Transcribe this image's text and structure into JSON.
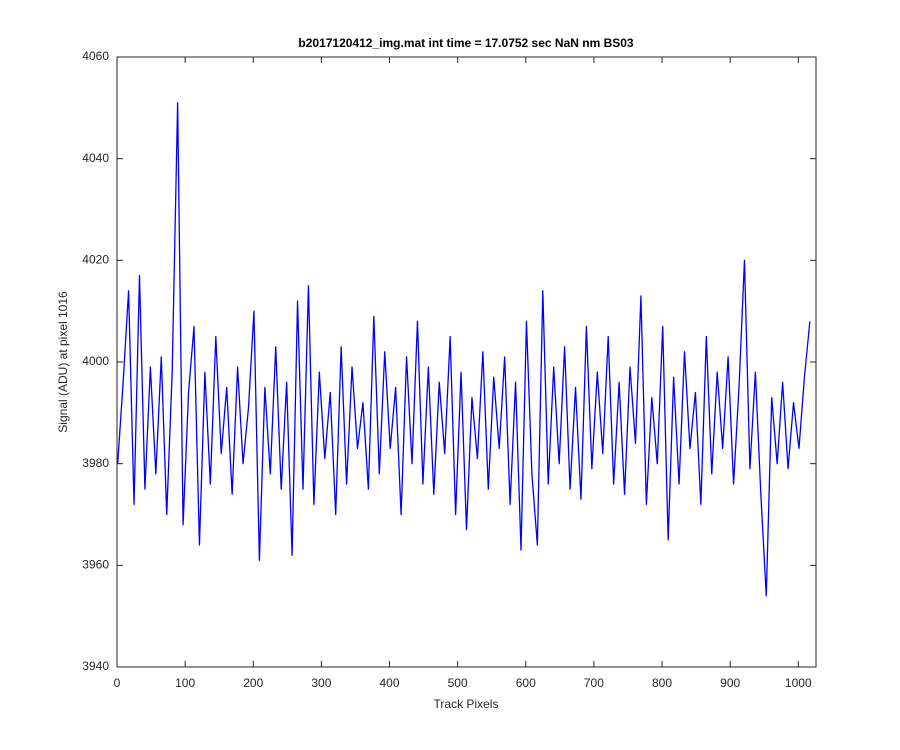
{
  "chart_data": {
    "type": "line",
    "title": "b2017120412_img.mat int time = 17.0752 sec  NaN nm BS03",
    "xlabel": "Track Pixels",
    "ylabel": "Signal (ADU) at pixel 1016",
    "xlim": [
      0,
      1026
    ],
    "ylim": [
      3940,
      4060
    ],
    "xticks": [
      0,
      100,
      200,
      300,
      400,
      500,
      600,
      700,
      800,
      900,
      1000
    ],
    "yticks": [
      3940,
      3960,
      3980,
      4000,
      4020,
      4040,
      4060
    ],
    "grid": false,
    "x": [
      1,
      9,
      17,
      25,
      33,
      41,
      49,
      57,
      65,
      73,
      81,
      89,
      97,
      105,
      113,
      121,
      129,
      137,
      145,
      153,
      161,
      169,
      177,
      185,
      193,
      201,
      209,
      217,
      225,
      233,
      241,
      249,
      257,
      265,
      273,
      281,
      289,
      297,
      305,
      313,
      321,
      329,
      337,
      345,
      353,
      361,
      369,
      377,
      385,
      393,
      401,
      409,
      417,
      425,
      433,
      441,
      449,
      457,
      465,
      473,
      481,
      489,
      497,
      505,
      513,
      521,
      529,
      537,
      545,
      553,
      561,
      569,
      577,
      585,
      593,
      601,
      609,
      617,
      625,
      633,
      641,
      649,
      657,
      665,
      673,
      681,
      689,
      697,
      705,
      713,
      721,
      729,
      737,
      745,
      753,
      761,
      769,
      777,
      785,
      793,
      801,
      809,
      817,
      825,
      833,
      841,
      849,
      857,
      865,
      873,
      881,
      889,
      897,
      905,
      913,
      921,
      929,
      937,
      945,
      953,
      961,
      969,
      977,
      985,
      993,
      1001,
      1009,
      1017
    ],
    "series": [
      {
        "color": "#0000ff",
        "values": [
          3980,
          3996,
          4014,
          3972,
          4017,
          3975,
          3999,
          3978,
          4001,
          3970,
          3998,
          4051,
          3968,
          3994,
          4007,
          3964,
          3998,
          3976,
          4005,
          3982,
          3995,
          3974,
          3999,
          3980,
          3991,
          4010,
          3961,
          3995,
          3978,
          4003,
          3975,
          3996,
          3962,
          4012,
          3975,
          4015,
          3972,
          3998,
          3981,
          3994,
          3970,
          4003,
          3976,
          3999,
          3983,
          3992,
          3975,
          4009,
          3978,
          4002,
          3983,
          3995,
          3970,
          4001,
          3980,
          4008,
          3976,
          3999,
          3974,
          3996,
          3982,
          4005,
          3970,
          3998,
          3967,
          3993,
          3981,
          4002,
          3975,
          3997,
          3983,
          4001,
          3972,
          3996,
          3963,
          4008,
          3978,
          3964,
          4014,
          3976,
          3999,
          3980,
          4003,
          3975,
          3995,
          3973,
          4007,
          3979,
          3998,
          3982,
          4005,
          3976,
          3996,
          3974,
          3999,
          3984,
          4013,
          3972,
          3993,
          3980,
          4007,
          3965,
          3997,
          3976,
          4002,
          3983,
          3994,
          3972,
          4005,
          3978,
          3998,
          3983,
          4001,
          3976,
          3995,
          4020,
          3979,
          3998,
          3974,
          3954,
          3993,
          3980,
          3996,
          3979,
          3992,
          3983,
          3997,
          4008
        ]
      }
    ]
  }
}
